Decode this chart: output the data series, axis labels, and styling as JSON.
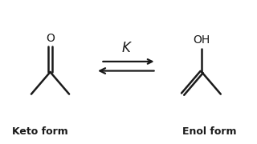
{
  "bg_color": "#ffffff",
  "line_color": "#1a1a1a",
  "keto_label": "Keto form",
  "enol_label": "Enol form",
  "equilibrium_label": "K",
  "label_fontsize": 9,
  "k_fontsize": 12,
  "line_width": 1.8
}
